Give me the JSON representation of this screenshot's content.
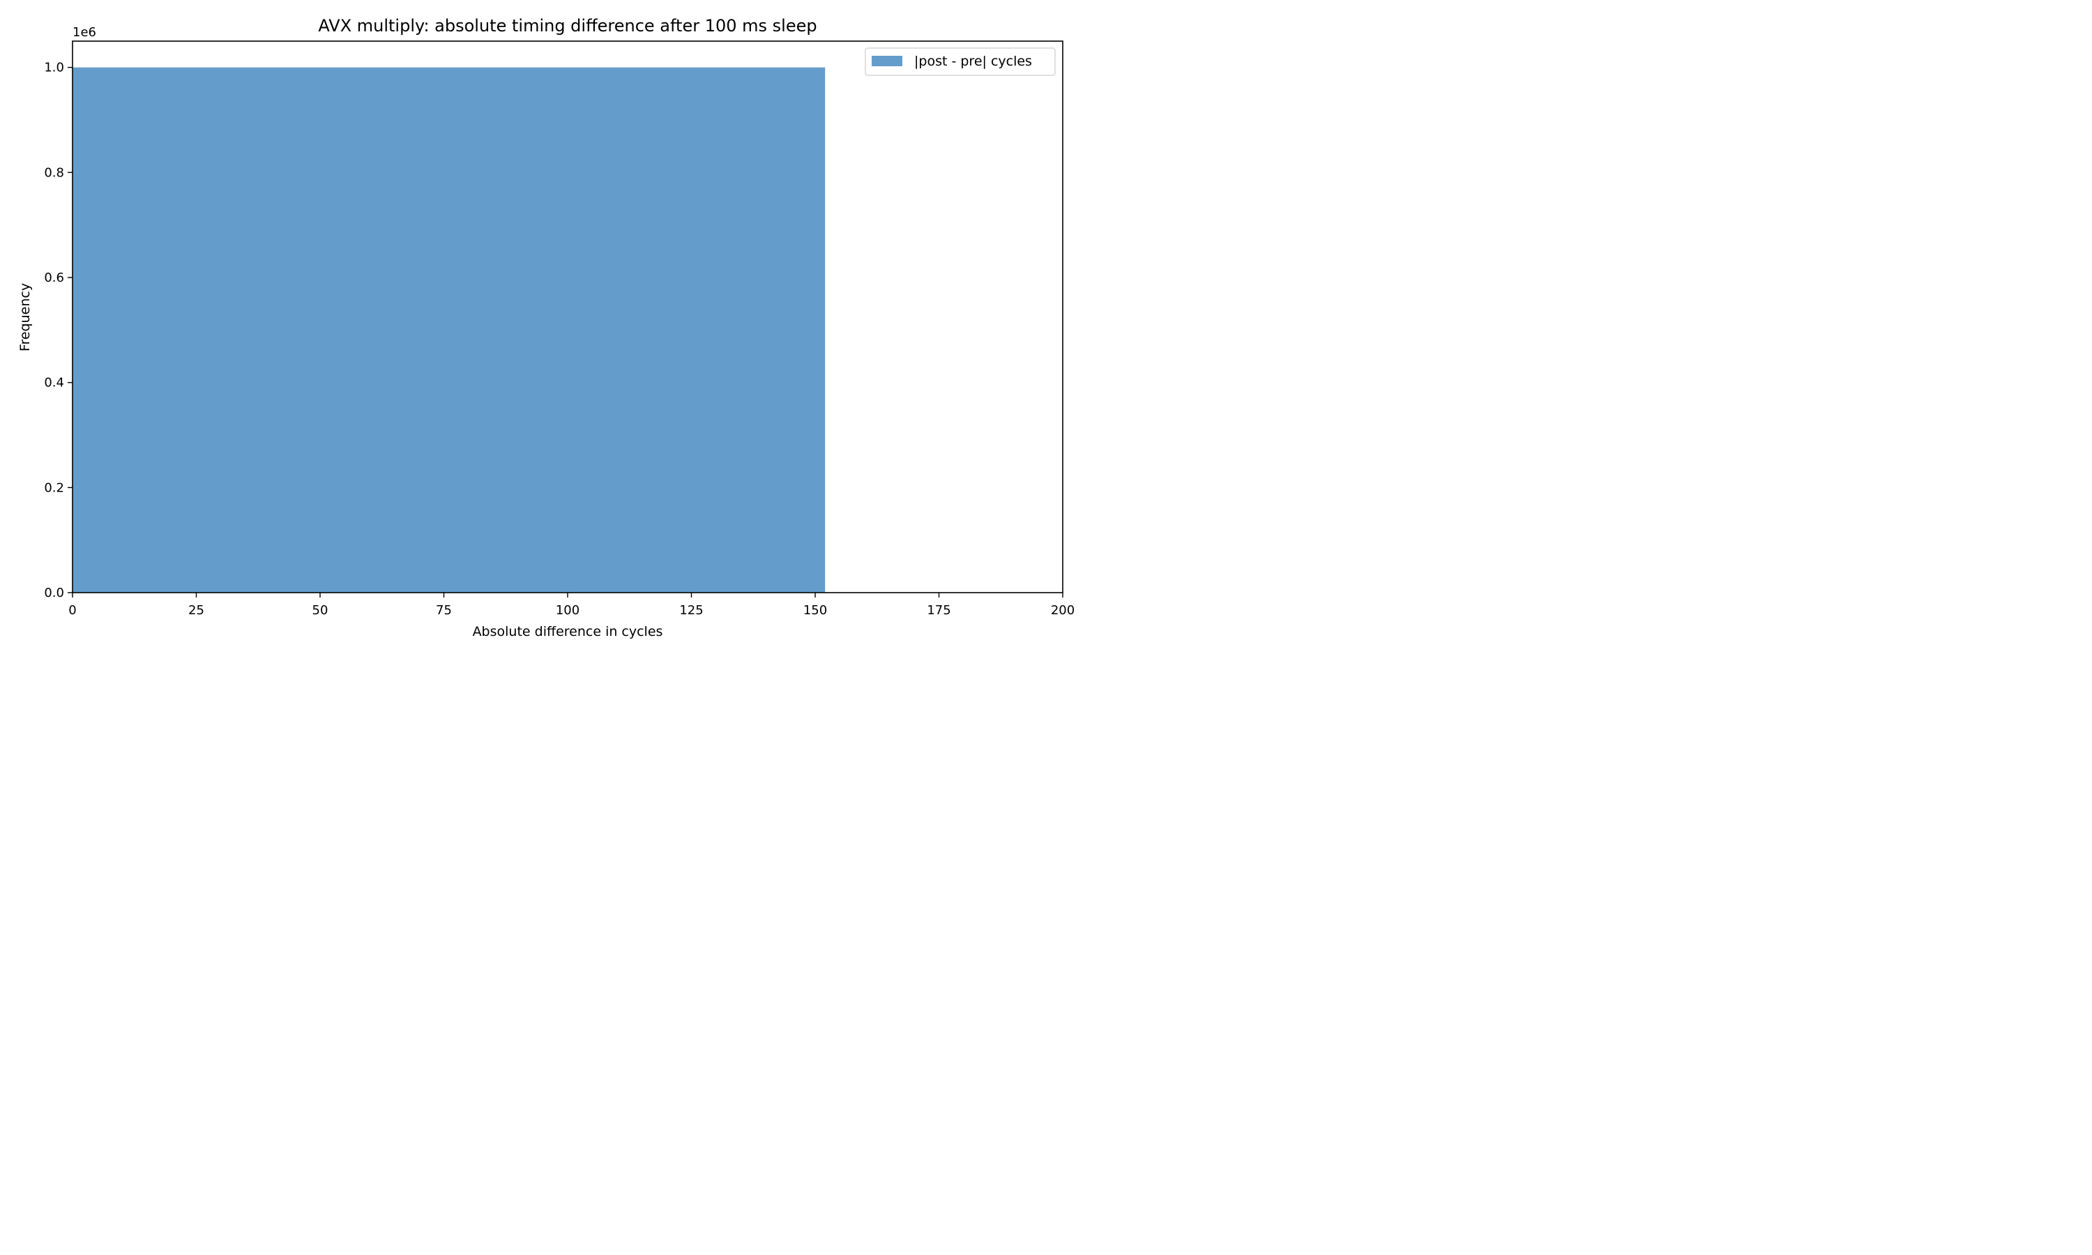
{
  "chart_data": {
    "type": "bar",
    "title": "AVX multiply: absolute timing difference after 100 ms sleep",
    "xlabel": "Absolute difference in cycles",
    "ylabel": "Frequency",
    "y_offset_label": "1e6",
    "y_scale": 1000000,
    "xlim": [
      0,
      200
    ],
    "ylim": [
      0,
      1050000
    ],
    "x_ticks": [
      0,
      25,
      50,
      75,
      100,
      125,
      150,
      175,
      200
    ],
    "x_tick_labels": [
      "0",
      "25",
      "50",
      "75",
      "100",
      "125",
      "150",
      "175",
      "200"
    ],
    "y_ticks": [
      0,
      200000,
      400000,
      600000,
      800000,
      1000000
    ],
    "y_tick_labels": [
      "0.0",
      "0.2",
      "0.4",
      "0.6",
      "0.8",
      "1.0"
    ],
    "grid": false,
    "legend_position": "top-right",
    "series": [
      {
        "name": "|post - pre| cycles",
        "color": "#4f8fc4",
        "bins": [
          {
            "x0": 0,
            "x1": 152,
            "value": 1000000
          }
        ]
      }
    ]
  }
}
